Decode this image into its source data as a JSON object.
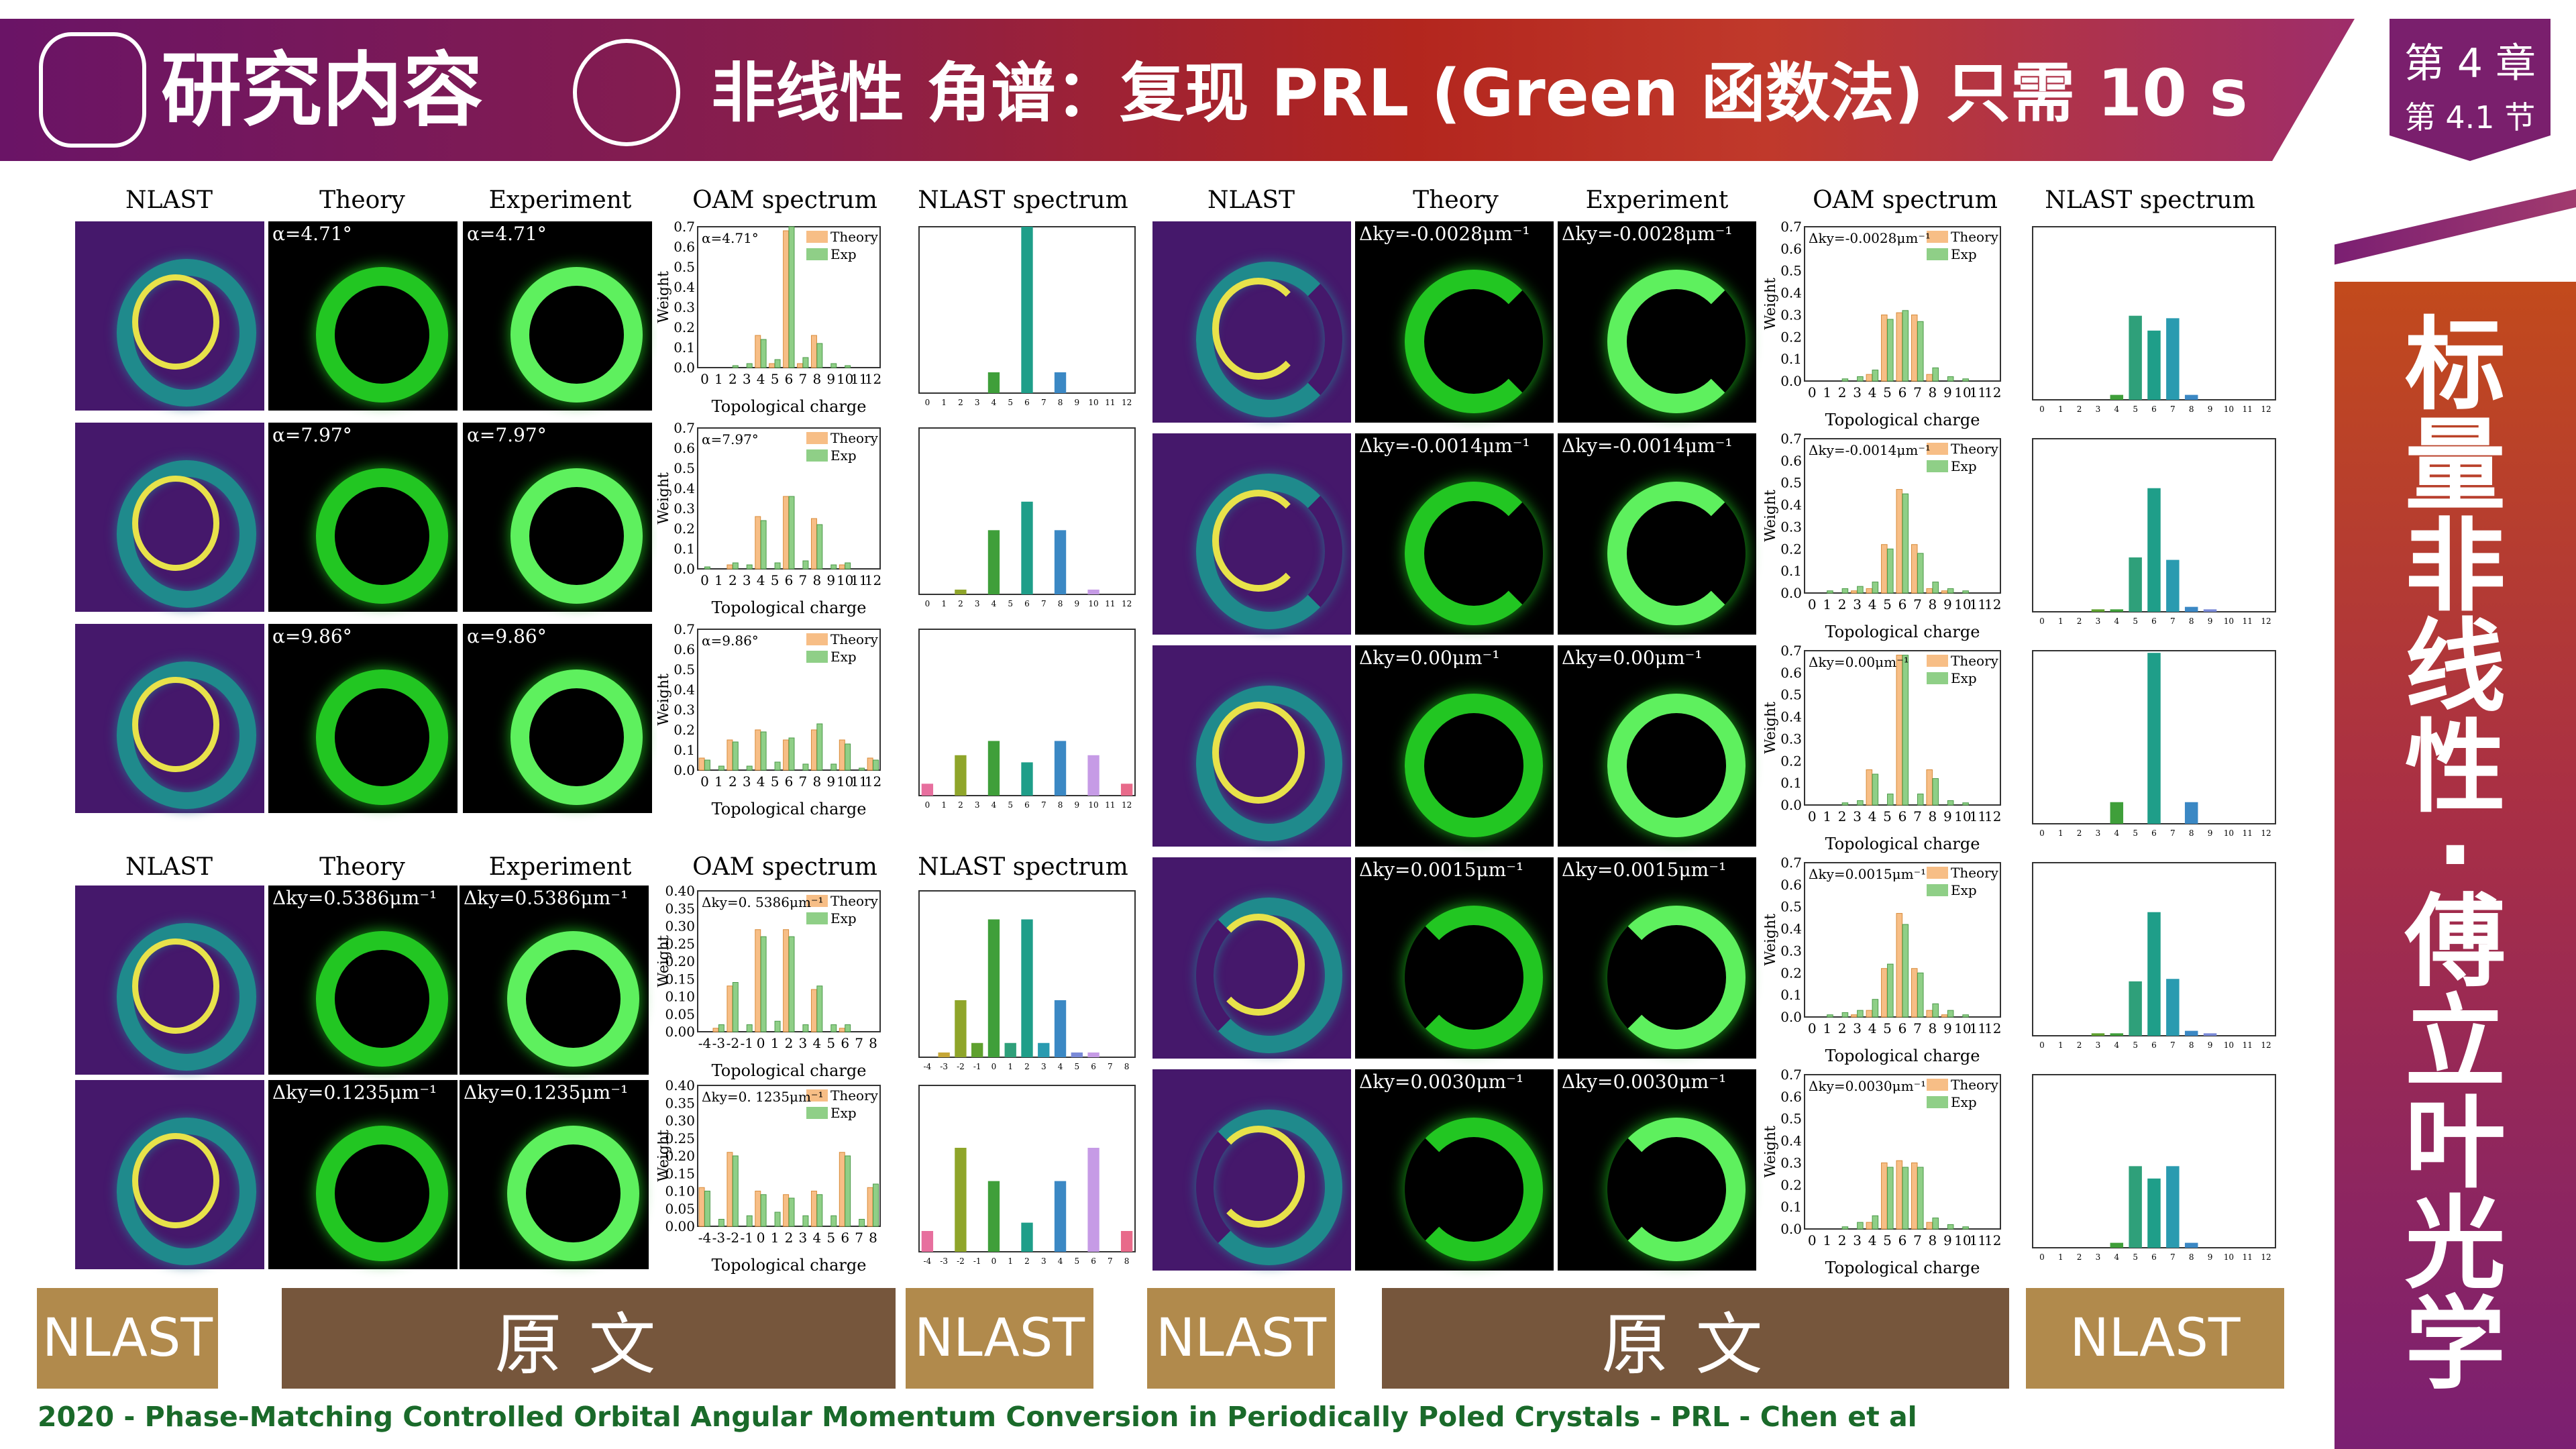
{
  "header": {
    "section": "研究内容",
    "title": "非线性 角谱：复现 PRL (Green 函数法) 只需 10 s"
  },
  "chapter": {
    "chapter": "第 4 章",
    "section": "第 4.1 节"
  },
  "side": {
    "title_chars": [
      "标",
      "量",
      "非",
      "线",
      "性",
      "·",
      "傅",
      "立",
      "叶",
      "光",
      "学"
    ]
  },
  "col_headers": {
    "nlast": "NLAST",
    "theory": "Theory",
    "experiment": "Experiment",
    "oam": "OAM spectrum",
    "nlast_spec": "NLAST spectrum"
  },
  "chart_axis": {
    "x": "Topological charge",
    "y": "Weight",
    "legend_theory": "Theory",
    "legend_exp": "Exp"
  },
  "alpha_rows": [
    {
      "label": "α=4.71°",
      "chart_data": {
        "type": "bar",
        "ylim": [
          0,
          0.7
        ],
        "categories": [
          0,
          1,
          2,
          3,
          4,
          5,
          6,
          7,
          8,
          9,
          10,
          11,
          12
        ],
        "series": [
          {
            "name": "Theory",
            "values": [
              0,
              0,
              0,
              0,
              0.16,
              0.02,
              0.68,
              0.02,
              0.16,
              0,
              0,
              0,
              0
            ]
          },
          {
            "name": "Exp",
            "values": [
              0,
              0,
              0.01,
              0.02,
              0.14,
              0.04,
              0.7,
              0.05,
              0.12,
              0.02,
              0.01,
              0,
              0
            ]
          }
        ]
      },
      "nlast": {
        "type": "bar",
        "ylim": [
          0,
          0.8
        ],
        "categories": [
          0,
          1,
          2,
          3,
          4,
          5,
          6,
          7,
          8,
          9,
          10,
          11,
          12
        ],
        "values": [
          0,
          0,
          0,
          0,
          0.1,
          0,
          0.8,
          0,
          0.1,
          0,
          0,
          0,
          0
        ]
      }
    },
    {
      "label": "α=7.97°",
      "chart_data": {
        "type": "bar",
        "ylim": [
          0,
          0.7
        ],
        "categories": [
          0,
          1,
          2,
          3,
          4,
          5,
          6,
          7,
          8,
          9,
          10,
          11,
          12
        ],
        "series": [
          {
            "name": "Theory",
            "values": [
              0,
              0,
              0.02,
              0,
              0.26,
              0,
              0.36,
              0,
              0.25,
              0,
              0.02,
              0,
              0
            ]
          },
          {
            "name": "Exp",
            "values": [
              0.01,
              0,
              0.03,
              0.02,
              0.24,
              0.03,
              0.36,
              0.04,
              0.22,
              0.02,
              0.03,
              0,
              0
            ]
          }
        ]
      },
      "nlast": {
        "type": "bar",
        "ylim": [
          0,
          0.7
        ],
        "categories": [
          0,
          1,
          2,
          3,
          4,
          5,
          6,
          7,
          8,
          9,
          10,
          11,
          12
        ],
        "values": [
          0,
          0,
          0.02,
          0,
          0.27,
          0,
          0.39,
          0,
          0.27,
          0,
          0.02,
          0,
          0
        ]
      }
    },
    {
      "label": "α=9.86°",
      "chart_data": {
        "type": "bar",
        "ylim": [
          0,
          0.7
        ],
        "categories": [
          0,
          1,
          2,
          3,
          4,
          5,
          6,
          7,
          8,
          9,
          10,
          11,
          12
        ],
        "series": [
          {
            "name": "Theory",
            "values": [
              0.06,
              0,
              0.15,
              0,
              0.2,
              0,
              0.15,
              0,
              0.2,
              0,
              0.15,
              0,
              0.06
            ]
          },
          {
            "name": "Exp",
            "values": [
              0.05,
              0.02,
              0.14,
              0.02,
              0.19,
              0.04,
              0.16,
              0.03,
              0.23,
              0.03,
              0.13,
              0.01,
              0.05
            ]
          }
        ]
      },
      "nlast": {
        "type": "bar",
        "ylim": [
          0,
          0.7
        ],
        "categories": [
          0,
          1,
          2,
          3,
          4,
          5,
          6,
          7,
          8,
          9,
          10,
          11,
          12
        ],
        "values": [
          0.05,
          0,
          0.17,
          0,
          0.23,
          0,
          0.14,
          0,
          0.23,
          0,
          0.17,
          0,
          0.05
        ]
      }
    }
  ],
  "ky_rows_left": [
    {
      "label": "Δky=0.5386μm⁻¹",
      "chart_label": "Δky=0. 5386μm⁻¹",
      "chart_data": {
        "type": "bar",
        "ylim": [
          0,
          0.4
        ],
        "categories": [
          -4,
          -3,
          -2,
          -1,
          0,
          1,
          2,
          3,
          4,
          5,
          6,
          7,
          8
        ],
        "series": [
          {
            "name": "Theory",
            "values": [
              0,
              0.01,
              0.13,
              0,
              0.29,
              0,
              0.29,
              0,
              0.12,
              0,
              0.01,
              0,
              0
            ]
          },
          {
            "name": "Exp",
            "values": [
              0,
              0.02,
              0.14,
              0.02,
              0.27,
              0.03,
              0.27,
              0.02,
              0.13,
              0.02,
              0.02,
              0,
              0
            ]
          }
        ]
      },
      "nlast": {
        "type": "bar",
        "ylim": [
          0,
          0.35
        ],
        "categories": [
          -4,
          -3,
          -2,
          -1,
          0,
          1,
          2,
          3,
          4,
          5,
          6,
          7,
          8
        ],
        "values": [
          0,
          0.01,
          0.12,
          0.03,
          0.29,
          0.03,
          0.29,
          0.03,
          0.12,
          0.01,
          0.01,
          0,
          0
        ]
      }
    },
    {
      "label": "Δky=0.1235μm⁻¹",
      "chart_label": "Δky=0. 1235μm⁻¹",
      "chart_data": {
        "type": "bar",
        "ylim": [
          0,
          0.4
        ],
        "categories": [
          -4,
          -3,
          -2,
          -1,
          0,
          1,
          2,
          3,
          4,
          5,
          6,
          7,
          8
        ],
        "series": [
          {
            "name": "Theory",
            "values": [
              0.11,
              0,
              0.21,
              0,
              0.1,
              0,
              0.09,
              0,
              0.1,
              0,
              0.21,
              0,
              0.11
            ]
          },
          {
            "name": "Exp",
            "values": [
              0.1,
              0.02,
              0.2,
              0.03,
              0.09,
              0.04,
              0.08,
              0.03,
              0.09,
              0.03,
              0.2,
              0.02,
              0.12
            ]
          }
        ]
      },
      "nlast": {
        "type": "bar",
        "ylim": [
          0,
          0.4
        ],
        "categories": [
          -4,
          -3,
          -2,
          -1,
          0,
          1,
          2,
          3,
          4,
          5,
          6,
          7,
          8
        ],
        "values": [
          0.05,
          0,
          0.25,
          0,
          0.17,
          0,
          0.07,
          0,
          0.17,
          0,
          0.25,
          0,
          0.05
        ]
      }
    }
  ],
  "ky_rows_right": [
    {
      "label": "Δky=-0.0028μm⁻¹",
      "chart_data": {
        "type": "bar",
        "ylim": [
          0,
          0.7
        ],
        "categories": [
          0,
          1,
          2,
          3,
          4,
          5,
          6,
          7,
          8,
          9,
          10,
          11,
          12
        ],
        "series": [
          {
            "name": "Theory",
            "values": [
              0,
              0,
              0,
              0,
              0.03,
              0.3,
              0.31,
              0.3,
              0.03,
              0,
              0,
              0,
              0
            ]
          },
          {
            "name": "Exp",
            "values": [
              0,
              0,
              0.01,
              0.02,
              0.05,
              0.28,
              0.32,
              0.27,
              0.06,
              0.02,
              0.01,
              0,
              0
            ]
          }
        ]
      },
      "nlast": {
        "type": "bar",
        "ylim": [
          0,
          0.7
        ],
        "categories": [
          0,
          1,
          2,
          3,
          4,
          5,
          6,
          7,
          8,
          9,
          10,
          11,
          12
        ],
        "values": [
          0,
          0,
          0,
          0,
          0.02,
          0.34,
          0.28,
          0.33,
          0.02,
          0,
          0,
          0,
          0
        ]
      }
    },
    {
      "label": "Δky=-0.0014μm⁻¹",
      "chart_data": {
        "type": "bar",
        "ylim": [
          0,
          0.7
        ],
        "categories": [
          0,
          1,
          2,
          3,
          4,
          5,
          6,
          7,
          8,
          9,
          10,
          11,
          12
        ],
        "series": [
          {
            "name": "Theory",
            "values": [
              0,
              0,
              0,
              0.01,
              0.02,
              0.22,
              0.47,
              0.22,
              0.02,
              0.01,
              0,
              0,
              0
            ]
          },
          {
            "name": "Exp",
            "values": [
              0,
              0.01,
              0.02,
              0.03,
              0.05,
              0.2,
              0.45,
              0.18,
              0.05,
              0.02,
              0.01,
              0,
              0
            ]
          }
        ]
      },
      "nlast": {
        "type": "bar",
        "ylim": [
          0,
          0.7
        ],
        "categories": [
          0,
          1,
          2,
          3,
          4,
          5,
          6,
          7,
          8,
          9,
          10,
          11,
          12
        ],
        "values": [
          0,
          0,
          0,
          0.01,
          0.01,
          0.22,
          0.5,
          0.21,
          0.02,
          0.01,
          0,
          0,
          0
        ]
      }
    },
    {
      "label": "Δky=0.00μm⁻¹",
      "chart_data": {
        "type": "bar",
        "ylim": [
          0,
          0.7
        ],
        "categories": [
          0,
          1,
          2,
          3,
          4,
          5,
          6,
          7,
          8,
          9,
          10,
          11,
          12
        ],
        "series": [
          {
            "name": "Theory",
            "values": [
              0,
              0,
              0,
              0,
              0.16,
              0,
              0.68,
              0,
              0.16,
              0,
              0,
              0,
              0
            ]
          },
          {
            "name": "Exp",
            "values": [
              0,
              0,
              0.01,
              0.02,
              0.14,
              0.05,
              0.68,
              0.05,
              0.12,
              0.02,
              0.01,
              0,
              0
            ]
          }
        ]
      },
      "nlast": {
        "type": "bar",
        "ylim": [
          0,
          0.8
        ],
        "categories": [
          0,
          1,
          2,
          3,
          4,
          5,
          6,
          7,
          8,
          9,
          10,
          11,
          12
        ],
        "values": [
          0,
          0,
          0,
          0,
          0.1,
          0,
          0.79,
          0,
          0.1,
          0,
          0,
          0,
          0
        ]
      }
    },
    {
      "label": "Δky=0.0015μm⁻¹",
      "chart_data": {
        "type": "bar",
        "ylim": [
          0,
          0.7
        ],
        "categories": [
          0,
          1,
          2,
          3,
          4,
          5,
          6,
          7,
          8,
          9,
          10,
          11,
          12
        ],
        "series": [
          {
            "name": "Theory",
            "values": [
              0,
              0,
              0,
              0.01,
              0.03,
              0.22,
              0.47,
              0.22,
              0.03,
              0.01,
              0,
              0,
              0
            ]
          },
          {
            "name": "Exp",
            "values": [
              0,
              0.01,
              0.02,
              0.03,
              0.08,
              0.24,
              0.42,
              0.2,
              0.06,
              0.03,
              0.01,
              0,
              0
            ]
          }
        ]
      },
      "nlast": {
        "type": "bar",
        "ylim": [
          0,
          0.7
        ],
        "categories": [
          0,
          1,
          2,
          3,
          4,
          5,
          6,
          7,
          8,
          9,
          10,
          11,
          12
        ],
        "values": [
          0,
          0,
          0,
          0.01,
          0.01,
          0.22,
          0.5,
          0.23,
          0.02,
          0.01,
          0,
          0,
          0
        ]
      }
    },
    {
      "label": "Δky=0.0030μm⁻¹",
      "chart_data": {
        "type": "bar",
        "ylim": [
          0,
          0.7
        ],
        "categories": [
          0,
          1,
          2,
          3,
          4,
          5,
          6,
          7,
          8,
          9,
          10,
          11,
          12
        ],
        "series": [
          {
            "name": "Theory",
            "values": [
              0,
              0,
              0,
              0,
              0.03,
              0.3,
              0.31,
              0.3,
              0.03,
              0,
              0,
              0,
              0
            ]
          },
          {
            "name": "Exp",
            "values": [
              0,
              0,
              0.01,
              0.03,
              0.06,
              0.28,
              0.28,
              0.28,
              0.05,
              0.02,
              0.01,
              0,
              0
            ]
          }
        ]
      },
      "nlast": {
        "type": "bar",
        "ylim": [
          0,
          0.7
        ],
        "categories": [
          0,
          1,
          2,
          3,
          4,
          5,
          6,
          7,
          8,
          9,
          10,
          11,
          12
        ],
        "values": [
          0,
          0,
          0,
          0,
          0.02,
          0.33,
          0.28,
          0.33,
          0.02,
          0,
          0,
          0,
          0
        ]
      }
    }
  ],
  "buttons": [
    "NLAST",
    "原文",
    "NLAST",
    "NLAST",
    "原文",
    "NLAST"
  ],
  "footer": "2020 - Phase-Matching Controlled Orbital Angular Momentum Conversion in Periodically Poled Crystals - PRL - Chen et al",
  "colors": {
    "theory": "#f7be86",
    "exp": "#8fcf87",
    "nlast_main": "#1f9e89",
    "accent_gold": "#b18a4c",
    "accent_brown": "#76563c"
  }
}
